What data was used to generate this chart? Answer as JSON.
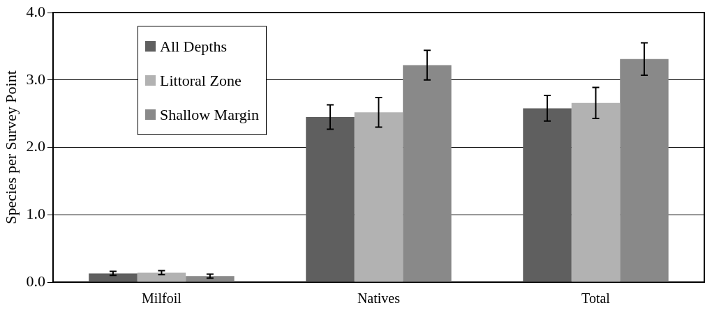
{
  "chart_data": {
    "type": "bar",
    "ylabel": "Species per Survey Point",
    "categories": [
      "Milfoil",
      "Natives",
      "Total"
    ],
    "series": [
      {
        "name": "All Depths",
        "color": "#5f5f5f",
        "values": [
          0.13,
          2.45,
          2.58
        ],
        "errors": [
          0.03,
          0.18,
          0.19
        ]
      },
      {
        "name": "Littoral Zone",
        "color": "#b2b2b2",
        "values": [
          0.14,
          2.52,
          2.66
        ],
        "errors": [
          0.03,
          0.22,
          0.23
        ]
      },
      {
        "name": "Shallow Margin",
        "color": "#898989",
        "values": [
          0.09,
          3.22,
          3.31
        ],
        "errors": [
          0.03,
          0.22,
          0.24
        ]
      }
    ],
    "ylim": [
      0,
      4
    ],
    "yticks": [
      {
        "value": 0,
        "label": "0.0"
      },
      {
        "value": 1,
        "label": "1.0"
      },
      {
        "value": 2,
        "label": "2.0"
      },
      {
        "value": 3,
        "label": "3.0"
      },
      {
        "value": 4,
        "label": "4.0"
      }
    ],
    "grid": "y",
    "legend": "top left"
  }
}
